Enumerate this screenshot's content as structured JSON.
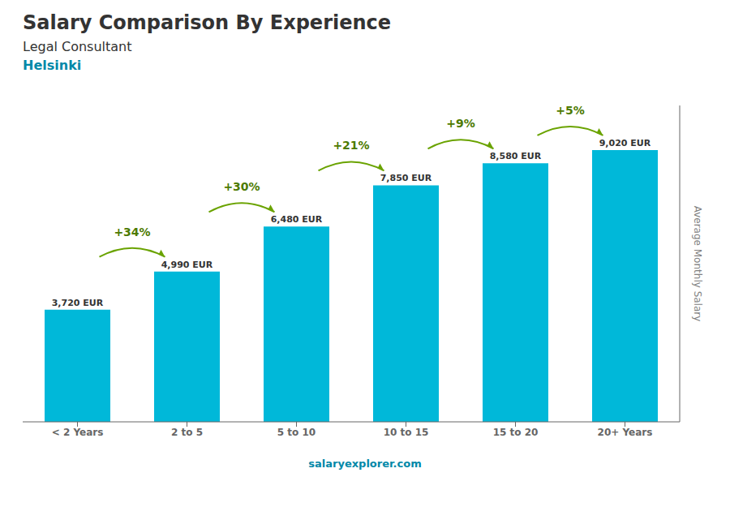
{
  "chart_data": {
    "type": "bar",
    "title": "Salary Comparison By Experience",
    "subtitle": "Legal Consultant",
    "ylabel": "Average Monthly Salary",
    "categories": [
      "< 2 Years",
      "2 to 5",
      "5 to 10",
      "10 to 15",
      "15 to 20",
      "20+ Years"
    ],
    "values": [
      3720,
      4990,
      6480,
      7850,
      8580,
      9020
    ],
    "value_labels": [
      "3,720 EUR",
      "4,990 EUR",
      "6,480 EUR",
      "7,850 EUR",
      "8,580 EUR",
      "9,020 EUR"
    ],
    "data_labels": true,
    "color": "#00b8d9",
    "ylim": [
      0,
      10500
    ],
    "tick_labels": "x",
    "grid": false,
    "annotations": [
      "Helsinki",
      {
        "text": "+34%",
        "from": "< 2 Years",
        "to": "2 to 5"
      },
      {
        "text": "+30%",
        "from": "2 to 5",
        "to": "5 to 10"
      },
      {
        "text": "+21%",
        "from": "5 to 10",
        "to": "10 to 15"
      },
      {
        "text": "+9%",
        "from": "10 to 15",
        "to": "15 to 20"
      },
      {
        "text": "+5%",
        "from": "15 to 20",
        "to": "20+ Years"
      },
      "salaryexplorer.com"
    ]
  }
}
